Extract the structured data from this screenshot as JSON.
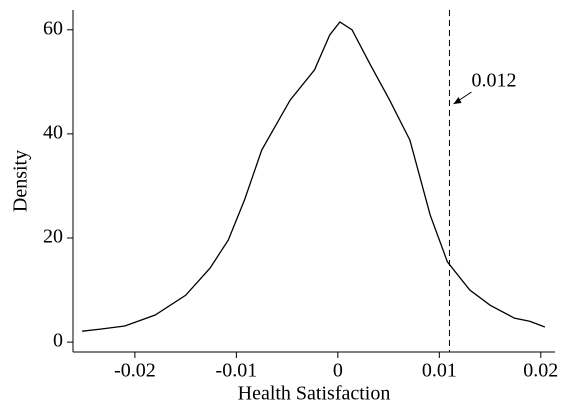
{
  "chart_data": {
    "type": "line",
    "x_label": "Health Satisfaction",
    "y_label": "Density",
    "x": [
      -0.0252,
      -0.0234,
      -0.021,
      -0.018,
      -0.015,
      -0.0126,
      -0.0108,
      -0.0092,
      -0.0075,
      -0.0047,
      -0.0023,
      -0.0008,
      0.0002,
      0.0014,
      0.0032,
      0.0051,
      0.0071,
      0.0091,
      0.0108,
      0.013,
      0.015,
      0.0174,
      0.0189,
      0.0204
    ],
    "values": [
      2.1,
      2.5,
      3.1,
      5.2,
      9.0,
      14.2,
      19.6,
      27.3,
      36.9,
      46.5,
      52.3,
      59.0,
      61.5,
      60,
      53.3,
      46.5,
      38.8,
      24.4,
      15.4,
      10,
      7.1,
      4.6,
      4.0,
      2.9
    ],
    "color": "#000000",
    "xlim": [
      -0.0261,
      0.0214
    ],
    "ylim": [
      -1.9,
      63.8
    ],
    "xticks": [
      -0.02,
      -0.01,
      0,
      0.01,
      0.02
    ],
    "yticks": [
      0,
      20,
      40,
      60
    ],
    "vline": 0.011,
    "annotation": "0.012"
  }
}
